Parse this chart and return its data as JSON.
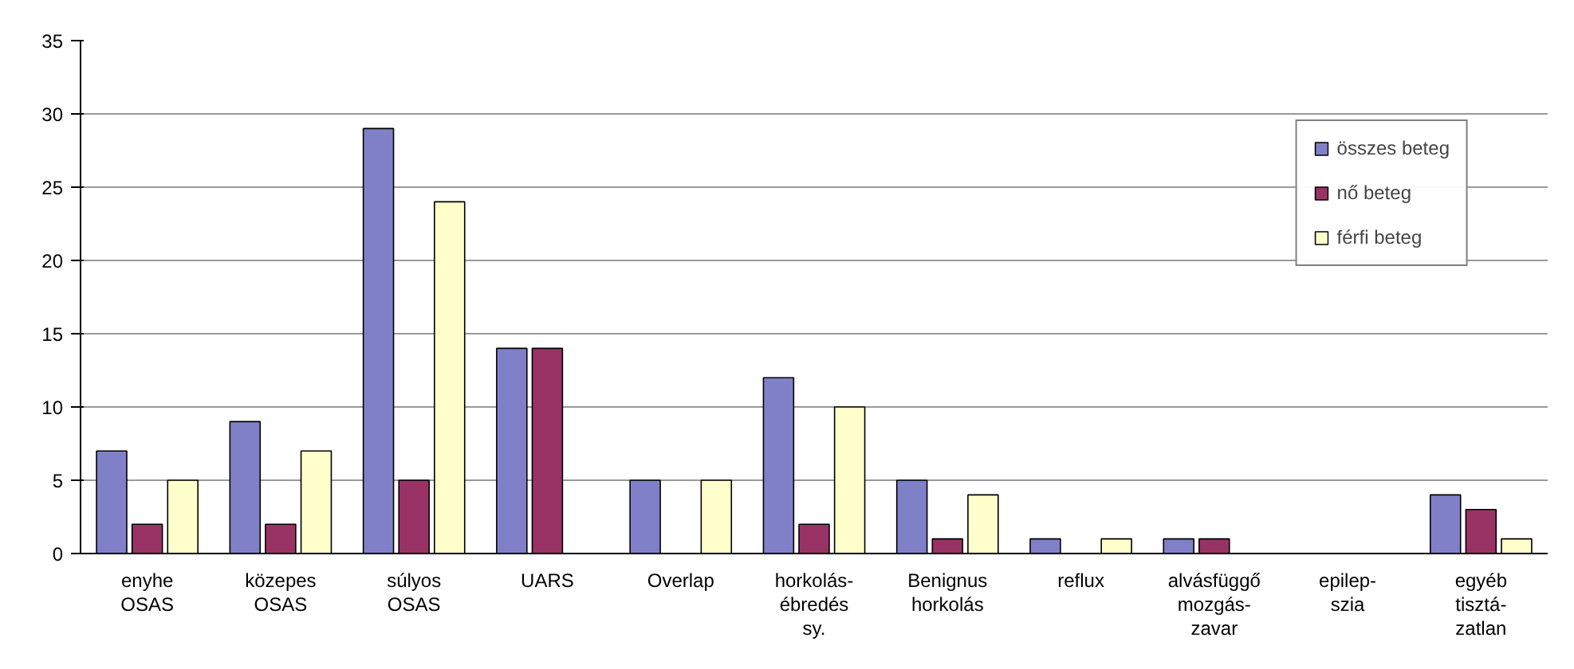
{
  "chart_data": {
    "type": "bar",
    "categories": [
      "enyhe\nOSAS",
      "közepes\nOSAS",
      "súlyos\nOSAS",
      "UARS",
      "Overlap",
      "horkolás-\nébredés\nsy.",
      "Benignus\nhorkolás",
      "reflux",
      "alvásfüggő\nmozgás-\nzavar",
      "epilep-\nszia",
      "egyéb\ntisztá-\nzatlan"
    ],
    "series": [
      {
        "name": "összes beteg",
        "color": "#8080c8",
        "values": [
          7,
          9,
          29,
          14,
          5,
          12,
          5,
          1,
          1,
          0,
          4
        ]
      },
      {
        "name": "nő beteg",
        "color": "#993366",
        "values": [
          2,
          2,
          5,
          14,
          0,
          2,
          1,
          0,
          1,
          0,
          3
        ]
      },
      {
        "name": "férfi beteg",
        "color": "#ffffcc",
        "values": [
          5,
          7,
          24,
          0,
          5,
          10,
          4,
          1,
          0,
          0,
          1
        ]
      }
    ],
    "ylim": [
      0,
      35
    ],
    "yticks": [
      0,
      5,
      10,
      15,
      20,
      25,
      30,
      35
    ],
    "grid": "y",
    "legend": "top right"
  }
}
